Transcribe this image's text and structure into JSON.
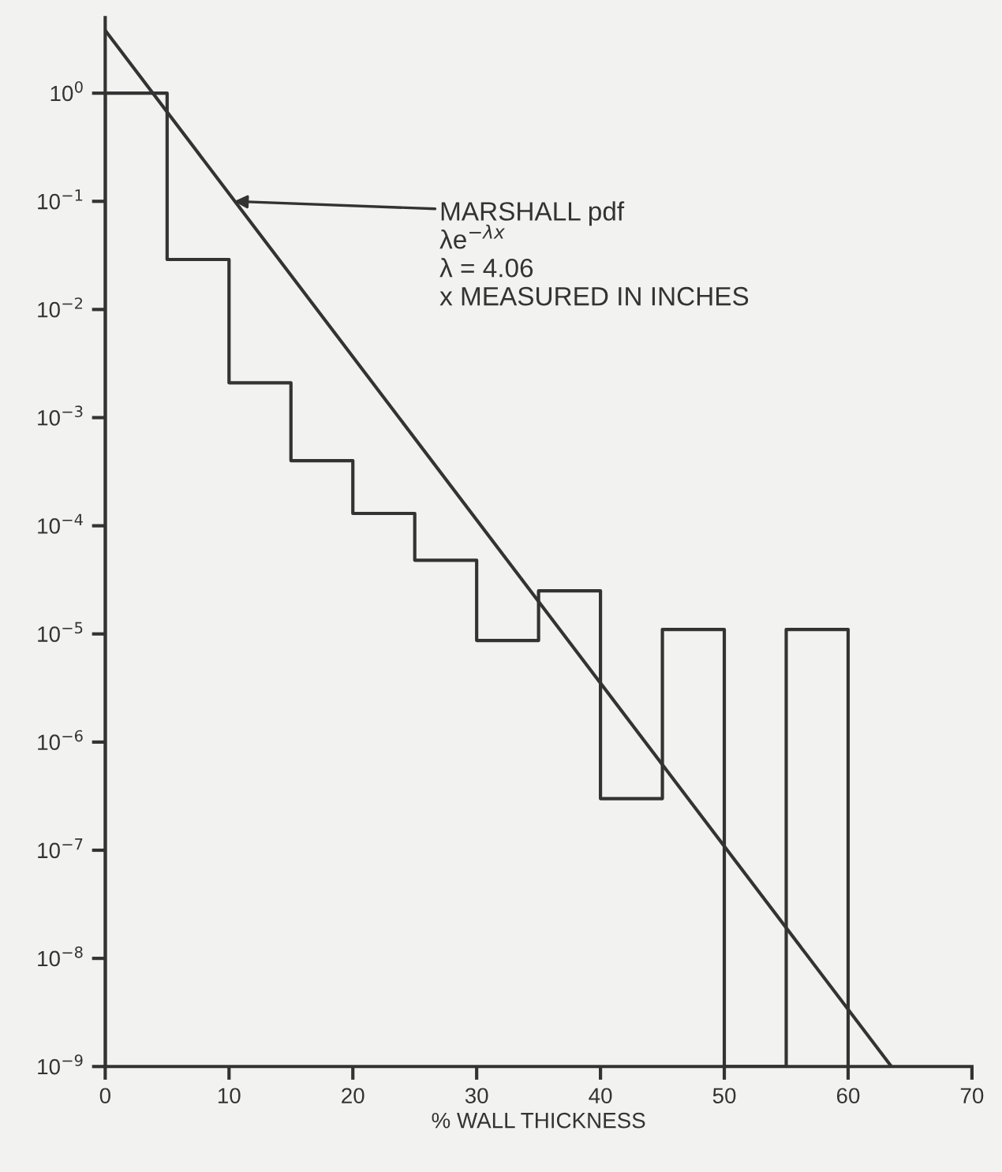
{
  "chart_data": {
    "type": "histogram",
    "xlabel": "% WALL THICKNESS",
    "log": "y",
    "grid": false,
    "xlim": [
      0,
      70
    ],
    "xticks": [
      0,
      10,
      20,
      30,
      40,
      50,
      60,
      70
    ],
    "ylim": [
      1e-09,
      5
    ],
    "yticks": [
      {
        "value": 1,
        "label": "10$^{0}$"
      },
      {
        "value": 0.1,
        "label": "10$^{−1}$"
      },
      {
        "value": 0.01,
        "label": "10$^{−2}$"
      },
      {
        "value": 0.001,
        "label": "10$^{−3}$"
      },
      {
        "value": 0.0001,
        "label": "10$^{−4}$"
      },
      {
        "value": 1e-05,
        "label": "10$^{−5}$"
      },
      {
        "value": 1e-06,
        "label": "10$^{−6}$"
      },
      {
        "value": 1e-07,
        "label": "10$^{−7}$"
      },
      {
        "value": 1e-08,
        "label": "10$^{−8}$"
      },
      {
        "value": 1e-09,
        "label": "10$^{−9}$"
      }
    ],
    "series": [
      {
        "color": "#333333",
        "bins": [
          0,
          5,
          10,
          15,
          20,
          25,
          30,
          35,
          40,
          45,
          50,
          55,
          60
        ],
        "values": [
          1,
          0.029,
          0.0021,
          0.0004,
          0.00013,
          4.8e-05,
          8.7e-06,
          2.5e-05,
          3e-07,
          1.1e-05,
          null,
          1.1e-05
        ]
      },
      {
        "type": "line",
        "color": "#333333",
        "x": [
          0,
          63.5
        ],
        "values": [
          3.8,
          1e-09
        ]
      }
    ],
    "annotations": [
      {
        "text": "MARSHALL pdf\nλe$^{−λx}$\nλ = 4.06\nx MEASURED IN INCHES",
        "x": 10.4,
        "y": 0.1
      }
    ]
  }
}
